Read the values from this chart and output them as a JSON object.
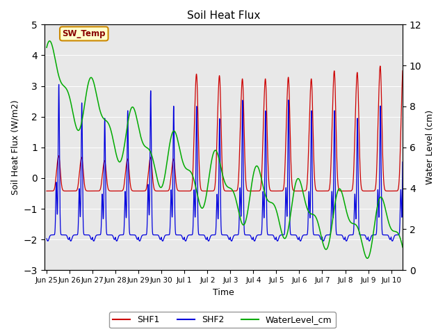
{
  "title": "Soil Heat Flux",
  "xlabel": "Time",
  "ylabel_left": "Soil Heat Flux (W/m2)",
  "ylabel_right": "Water Level (cm)",
  "ylim_left": [
    -3.0,
    5.0
  ],
  "ylim_right": [
    0,
    12
  ],
  "yticks_left": [
    -3.0,
    -2.0,
    -1.0,
    0.0,
    1.0,
    2.0,
    3.0,
    4.0,
    5.0
  ],
  "yticks_right": [
    0,
    2,
    4,
    6,
    8,
    10,
    12
  ],
  "bg_color": "#e8e8e8",
  "fig_bg": "#ffffff",
  "shf1_color": "#cc0000",
  "shf2_color": "#0000dd",
  "wl_color": "#00aa00",
  "annotation_text": "SW_Temp",
  "annotation_bg": "#ffffcc",
  "annotation_border": "#cc8800",
  "annotation_text_color": "#880000",
  "legend_labels": [
    "SHF1",
    "SHF2",
    "WaterLevel_cm"
  ],
  "n_days": 15.5,
  "samples_per_day": 200
}
